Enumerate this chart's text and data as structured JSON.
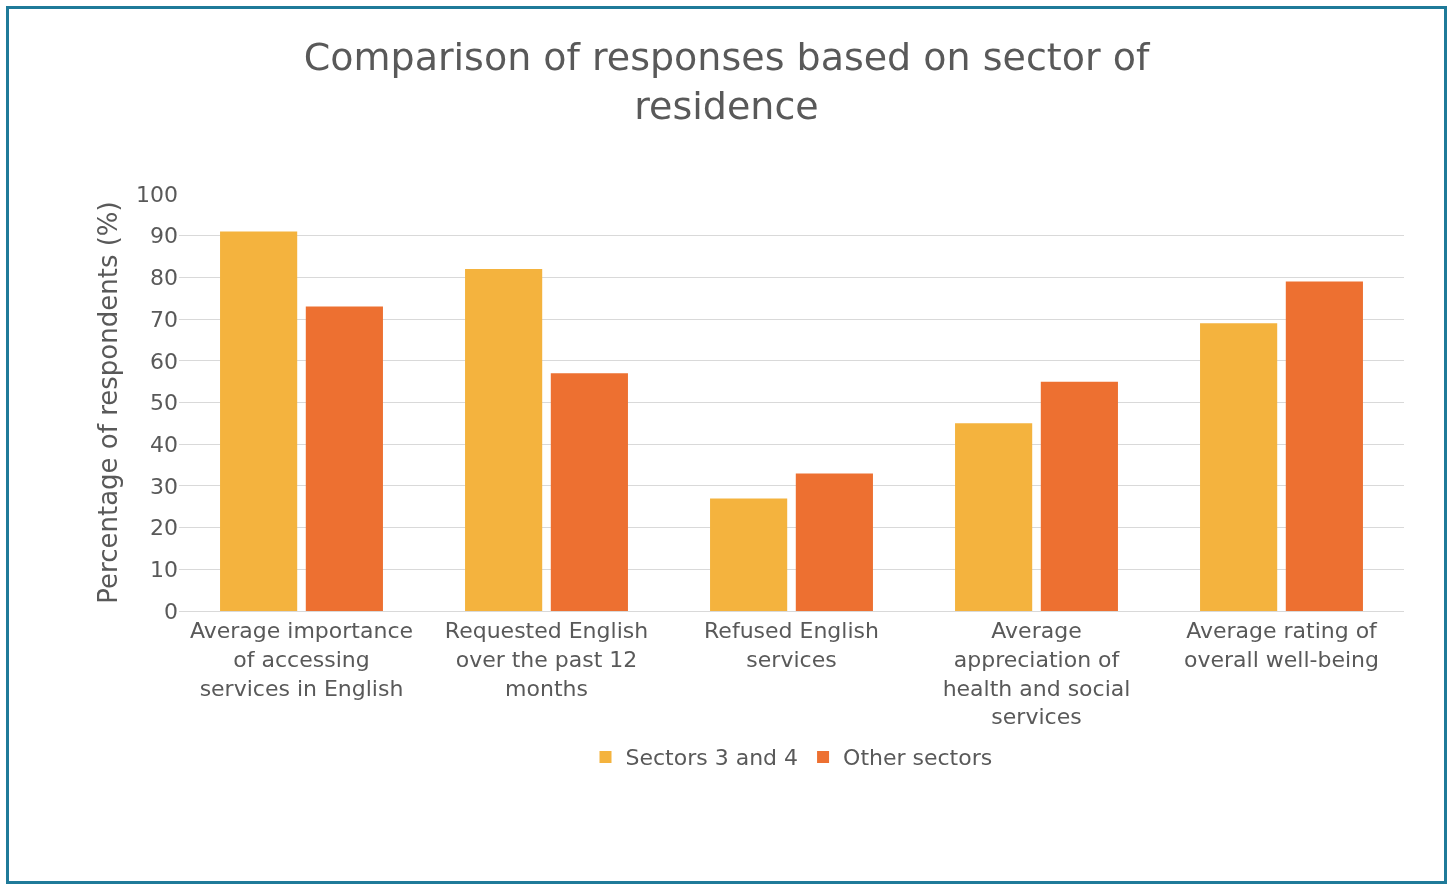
{
  "chart_data": {
    "type": "bar",
    "title": "Comparison of responses based on sector of residence",
    "ylabel": "Percentage of respondents (%)",
    "categories": [
      "Average importance of accessing services in English",
      "Requested English over the past 12 months",
      "Refused English services",
      "Average appreciation of health and social services",
      "Average rating of overall well-being"
    ],
    "series": [
      {
        "name": "Sectors 3 and 4",
        "color": "#f4b33e",
        "values": [
          91,
          82,
          27,
          45,
          69
        ]
      },
      {
        "name": "Other sectors",
        "color": "#ed7031",
        "values": [
          73,
          57,
          33,
          55,
          79
        ]
      }
    ],
    "ylim": [
      0,
      100
    ],
    "yticks": [
      0,
      10,
      20,
      30,
      40,
      50,
      60,
      70,
      80,
      90,
      100
    ],
    "grid": "y",
    "legend": "bottom"
  }
}
